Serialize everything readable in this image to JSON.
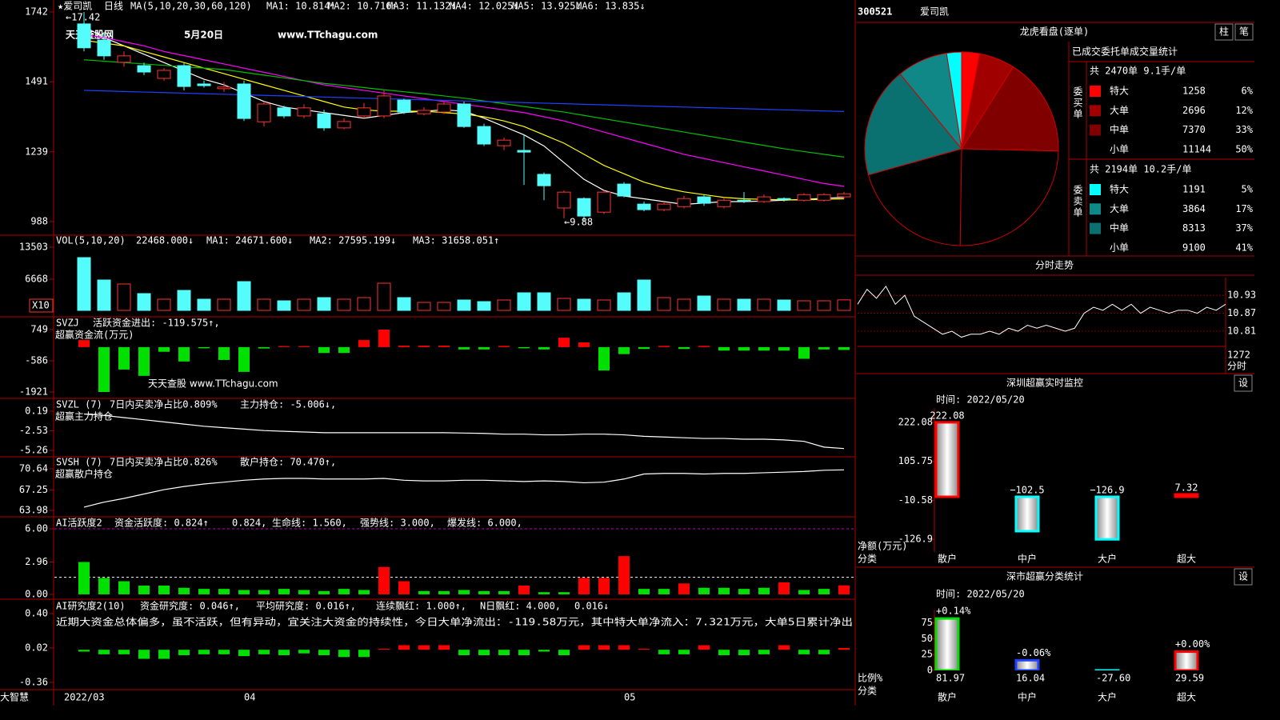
{
  "ui": {
    "stock_code": "300521",
    "stock_name": "爱司凯",
    "software": "大智慧",
    "watermark": [
      "天天查股网",
      "5月20日",
      "www.TTchagu.com"
    ],
    "watermark2": "天天查股 www.TTchagu.com",
    "commentary": "近期大资金总体偏多，虽不活跃，但有异动，宜关注大资金的持续性，今日大单净流出：-119.58万元，其中特大单净流入：7.321万元，大单5日累计净出"
  },
  "chart_data": [
    {
      "type": "candlestick",
      "header": [
        "★爱司凯",
        "日线",
        "MA(5,10,20,30,60,120)",
        "MA1: 10.814↑",
        "MA2: 10.716↑",
        "MA3: 11.132↓",
        "MA4: 12.025↓",
        "MA5: 13.925↓",
        "MA6: 13.835↓"
      ],
      "annotations": [
        "←17.42",
        "←9.88"
      ],
      "categories": [
        "2022/03",
        null,
        null,
        null,
        null,
        null,
        null,
        null,
        null,
        "04",
        null,
        null,
        null,
        null,
        null,
        null,
        null,
        null,
        null,
        null,
        null,
        null,
        null,
        null,
        null,
        null,
        null,
        null,
        "05",
        null,
        null,
        null,
        null,
        null,
        null,
        null,
        null,
        null,
        null
      ],
      "open": [
        1699,
        1641,
        1561,
        1549,
        1503,
        1549,
        1483,
        1466,
        1483,
        1347,
        1397,
        1368,
        1376,
        1325,
        1368,
        1368,
        1425,
        1376,
        1382,
        1411,
        1330,
        1261,
        1244,
        1158,
        1037,
        1071,
        1022,
        1123,
        1051,
        1031,
        1042,
        1077,
        1042,
        1065,
        1060,
        1071,
        1065,
        1065,
        1077
      ],
      "high": [
        1742,
        1670,
        1600,
        1560,
        1540,
        1560,
        1495,
        1490,
        1495,
        1420,
        1405,
        1410,
        1390,
        1360,
        1415,
        1460,
        1430,
        1400,
        1420,
        1420,
        1340,
        1290,
        1300,
        1165,
        1100,
        1075,
        1100,
        1130,
        1060,
        1060,
        1080,
        1085,
        1075,
        1094,
        1085,
        1075,
        1090,
        1090,
        1095
      ],
      "low": [
        1600,
        1570,
        1545,
        1515,
        1495,
        1460,
        1470,
        1455,
        1350,
        1330,
        1360,
        1360,
        1315,
        1320,
        1360,
        1360,
        1375,
        1370,
        1375,
        1325,
        1260,
        1245,
        1120,
        1065,
        1000,
        988,
        1015,
        1075,
        1025,
        1025,
        1035,
        1045,
        1035,
        1055,
        1055,
        1060,
        1060,
        1060,
        1070
      ],
      "close": [
        1613,
        1584,
        1584,
        1526,
        1532,
        1474,
        1477,
        1472,
        1359,
        1411,
        1368,
        1397,
        1325,
        1348,
        1397,
        1440,
        1382,
        1388,
        1411,
        1330,
        1267,
        1281,
        1238,
        1117,
        1094,
        1008,
        1094,
        1080,
        1031,
        1051,
        1071,
        1054,
        1065,
        1062,
        1077,
        1068,
        1085,
        1085,
        1088
      ],
      "up_color": "#ff3232",
      "down_color": "#54fcfc",
      "ma_lines": [
        {
          "color": "#ffffff",
          "values": [
            1690,
            1650,
            1620,
            1590,
            1560,
            1530,
            1500,
            1480,
            1450,
            1420,
            1400,
            1390,
            1380,
            1370,
            1360,
            1370,
            1380,
            1385,
            1390,
            1385,
            1360,
            1330,
            1300,
            1260,
            1200,
            1140,
            1100,
            1080,
            1070,
            1060,
            1050,
            1055,
            1060,
            1060,
            1062,
            1065,
            1068,
            1072,
            1075
          ]
        },
        {
          "color": "#ffff00",
          "values": [
            1640,
            1630,
            1620,
            1600,
            1580,
            1560,
            1540,
            1520,
            1500,
            1480,
            1460,
            1440,
            1420,
            1400,
            1390,
            1385,
            1385,
            1385,
            1380,
            1375,
            1365,
            1350,
            1330,
            1300,
            1270,
            1230,
            1190,
            1160,
            1130,
            1110,
            1095,
            1085,
            1075,
            1070,
            1068,
            1066,
            1066,
            1068,
            1070
          ]
        },
        {
          "color": "#ff00ff",
          "values": [
            1660,
            1650,
            1635,
            1620,
            1600,
            1585,
            1570,
            1555,
            1540,
            1525,
            1510,
            1495,
            1480,
            1470,
            1460,
            1450,
            1440,
            1430,
            1420,
            1410,
            1400,
            1390,
            1380,
            1365,
            1350,
            1330,
            1310,
            1290,
            1270,
            1250,
            1230,
            1215,
            1200,
            1185,
            1170,
            1155,
            1140,
            1125,
            1115
          ]
        },
        {
          "color": "#00c000",
          "values": [
            1570,
            1565,
            1560,
            1555,
            1550,
            1545,
            1540,
            1535,
            1525,
            1515,
            1505,
            1495,
            1485,
            1478,
            1470,
            1462,
            1455,
            1448,
            1440,
            1432,
            1422,
            1412,
            1402,
            1392,
            1382,
            1370,
            1358,
            1346,
            1334,
            1322,
            1310,
            1298,
            1286,
            1274,
            1262,
            1250,
            1240,
            1230,
            1220
          ]
        },
        {
          "color": "#2040ff",
          "values": [
            1460,
            1458,
            1456,
            1454,
            1452,
            1450,
            1448,
            1446,
            1444,
            1442,
            1440,
            1438,
            1436,
            1434,
            1432,
            1430,
            1428,
            1426,
            1424,
            1422,
            1420,
            1418,
            1416,
            1414,
            1412,
            1410,
            1408,
            1406,
            1404,
            1402,
            1400,
            1398,
            1396,
            1394,
            1392,
            1390,
            1388,
            1386,
            1384
          ]
        }
      ],
      "ylim": [
        942,
        1785
      ],
      "yticks": [
        1742,
        1491,
        1239,
        988
      ]
    },
    {
      "type": "volume",
      "header": [
        "VOL(5,10,20)",
        "22468.000↓",
        "MA1: 24671.600↓",
        "MA2: 27595.199↓",
        "MA3: 31658.051↑"
      ],
      "unit_label": "X10",
      "values": [
        11279,
        6494,
        5640,
        3589,
        2393,
        4273,
        2393,
        2393,
        6152,
        2393,
        2051,
        2393,
        2734,
        2393,
        2734,
        5811,
        2734,
        1709,
        1709,
        2222,
        1880,
        2222,
        3760,
        3760,
        2564,
        2393,
        2222,
        3760,
        6494,
        2734,
        2393,
        3076,
        2393,
        2393,
        2393,
        2222,
        2051,
        2051,
        2247
      ],
      "ylim": [
        0,
        15554
      ],
      "yticks": [
        13503,
        6668
      ]
    },
    {
      "type": "bar",
      "header": [
        "SVZJ",
        "活跃资金进出: -119.575↑,",
        "超赢资金流(万元)"
      ],
      "values": [
        300,
        -1921,
        -960,
        -1230,
        -200,
        -615,
        -50,
        -550,
        -1060,
        -60,
        40,
        40,
        -250,
        -250,
        300,
        749,
        60,
        60,
        60,
        -100,
        -100,
        50,
        -50,
        -100,
        400,
        200,
        -1000,
        -300,
        -80,
        50,
        -80,
        50,
        -150,
        -150,
        -150,
        -150,
        -500,
        -100,
        -120
      ],
      "up_color": "#ff0000",
      "down_color": "#00e000",
      "ylim": [
        -2160,
        1159
      ],
      "yticks": [
        749,
        -586,
        -1921
      ]
    },
    {
      "type": "line",
      "header": [
        "SVZL (7)",
        "7日内买卖净占比0.809%",
        "主力持仓: -5.006↓,",
        "超赢主力持仓"
      ],
      "color": "#ffffff",
      "values": [
        -0.2,
        -0.4,
        -0.7,
        -1.0,
        -1.3,
        -1.6,
        -1.9,
        -2.1,
        -2.3,
        -2.5,
        -2.6,
        -2.7,
        -2.8,
        -2.8,
        -2.8,
        -2.8,
        -2.8,
        -2.8,
        -2.8,
        -2.85,
        -2.9,
        -3.0,
        -3.0,
        -3.1,
        -3.1,
        -3.0,
        -3.0,
        -3.1,
        -3.3,
        -3.4,
        -3.5,
        -3.6,
        -3.6,
        -3.7,
        -3.7,
        -3.8,
        -4.0,
        -4.8,
        -5.006
      ],
      "ylim": [
        -6.04,
        1.75
      ],
      "yticks": [
        0.19,
        -2.53,
        -5.26
      ]
    },
    {
      "type": "line",
      "header": [
        "SVSH (7)",
        "7日内买卖净占比0.826%",
        "散户持仓: 70.470↑,",
        "超赢散户持仓"
      ],
      "color": "#ffffff",
      "values": [
        64.5,
        65.3,
        65.9,
        66.6,
        67.3,
        67.8,
        68.2,
        68.5,
        68.8,
        69.0,
        69.1,
        69.1,
        69.0,
        69.0,
        69.0,
        69.1,
        68.8,
        68.7,
        68.7,
        68.8,
        68.8,
        68.7,
        68.6,
        68.7,
        68.6,
        68.4,
        68.5,
        69.0,
        69.8,
        69.9,
        69.9,
        69.8,
        69.9,
        69.9,
        70.0,
        70.1,
        70.2,
        70.4,
        70.47
      ],
      "ylim": [
        63.08,
        72.3
      ],
      "yticks": [
        70.64,
        67.25,
        63.98
      ]
    },
    {
      "type": "bar",
      "header": [
        "AI活跃度2",
        "资金活跃度: 0.824↑",
        "0.824,",
        "生命线: 1.560,",
        "强势线: 3.000,",
        "爆发线: 6.000,"
      ],
      "values": [
        2.96,
        1.5,
        1.2,
        0.8,
        0.8,
        0.6,
        0.5,
        0.5,
        0.4,
        0.4,
        0.5,
        0.4,
        0.3,
        0.5,
        0.4,
        2.5,
        1.2,
        0.3,
        0.3,
        0.4,
        0.3,
        0.3,
        0.8,
        0.2,
        0.2,
        1.5,
        1.5,
        3.5,
        0.5,
        0.5,
        1.0,
        0.6,
        0.6,
        0.5,
        0.6,
        1.1,
        0.4,
        0.5,
        0.824
      ],
      "up": [
        false,
        false,
        false,
        false,
        false,
        false,
        false,
        false,
        false,
        false,
        false,
        false,
        false,
        false,
        false,
        true,
        true,
        false,
        false,
        false,
        false,
        false,
        true,
        false,
        false,
        true,
        true,
        true,
        false,
        false,
        true,
        false,
        false,
        false,
        false,
        true,
        false,
        false,
        true
      ],
      "up_color": "#ff0000",
      "down_color": "#00e000",
      "reference_lines": [
        {
          "value": 1.56,
          "color": "#ffffff"
        },
        {
          "value": 6,
          "color": "#c000c0"
        }
      ],
      "ylim": [
        -0.37,
        6.95
      ],
      "yticks": [
        {
          "value": 6,
          "label": "6.00"
        },
        {
          "value": 2.96,
          "label": "2.96"
        },
        {
          "value": 0,
          "label": "0.00"
        }
      ]
    },
    {
      "type": "bar",
      "header": [
        "AI研究度2(10)",
        "资金研究度: 0.046↑,",
        "平均研究度: 0.016↑,",
        "连续飘红: 1.000↑,",
        "N日飘红: 4.000,",
        "0.016↓"
      ],
      "values": [
        -0.02,
        -0.05,
        -0.05,
        -0.1,
        -0.1,
        -0.06,
        -0.05,
        -0.05,
        -0.07,
        -0.05,
        -0.06,
        -0.04,
        -0.06,
        -0.08,
        -0.08,
        0.01,
        0.05,
        0.05,
        0.05,
        -0.06,
        -0.06,
        -0.06,
        -0.06,
        -0.02,
        -0.06,
        0.05,
        0.05,
        0.05,
        0.01,
        -0.05,
        -0.05,
        0.05,
        -0.06,
        -0.06,
        -0.05,
        0.05,
        -0.05,
        -0.05,
        0.02
      ],
      "up_color": "#ff0000",
      "down_color": "#00e000",
      "ylim": [
        -0.44,
        0.532
      ],
      "yticks": [
        {
          "value": 0.4,
          "label": "0.40"
        },
        {
          "value": 0.02,
          "label": "0.02"
        },
        {
          "value": -0.36,
          "label": "-0.36"
        }
      ]
    },
    {
      "type": "pie",
      "title": "龙虎看盘(逐单)",
      "buttons": [
        "柱",
        "笔"
      ],
      "subtitle": "已成交委托单成交量统计",
      "buy": {
        "summary": "共 2470单 9.1手/单",
        "side": "委买单",
        "labels": [
          "特大",
          "大单",
          "中单",
          "小单"
        ],
        "volumes": [
          1258,
          2696,
          7370,
          11144
        ],
        "values": [
          6,
          12,
          33,
          50
        ],
        "value_labels": [
          "6%",
          "12%",
          "33%",
          "50%"
        ],
        "colors": [
          "#ff0000",
          "#a00000",
          "#800000",
          "#000000"
        ]
      },
      "sell": {
        "summary": "共 2194单 10.2手/单",
        "side": "委卖单",
        "labels": [
          "特大",
          "大单",
          "中单",
          "小单"
        ],
        "volumes": [
          1191,
          3864,
          8313,
          9100
        ],
        "values": [
          5,
          17,
          37,
          41
        ],
        "value_labels": [
          "5%",
          "17%",
          "37%",
          "41%"
        ],
        "colors": [
          "#00ffff",
          "#108888",
          "#0a7070",
          "#000000"
        ]
      }
    },
    {
      "type": "line",
      "title": "分时走势",
      "color": "#ffffff",
      "values": [
        10.9,
        10.95,
        10.92,
        10.96,
        10.9,
        10.93,
        10.86,
        10.84,
        10.82,
        10.8,
        10.81,
        10.79,
        10.8,
        10.8,
        10.81,
        10.8,
        10.82,
        10.81,
        10.83,
        10.82,
        10.83,
        10.82,
        10.81,
        10.82,
        10.87,
        10.89,
        10.88,
        10.9,
        10.88,
        10.9,
        10.87,
        10.89,
        10.88,
        10.87,
        10.88,
        10.88,
        10.87,
        10.89,
        10.88,
        10.9
      ],
      "ylim": [
        10.762,
        10.989
      ],
      "yticks": [
        10.93,
        10.87,
        10.81
      ],
      "vol_ticks": [
        1272
      ],
      "vol_label": "分时"
    },
    {
      "type": "bar",
      "title": "深圳超赢实时监控",
      "button": "设",
      "time": "时间: 2022/05/20",
      "ylabel": "净额(万元)",
      "xlabel": "分类",
      "categories": [
        "散户",
        "中户",
        "大户",
        "超大"
      ],
      "values": [
        222.08,
        -102.5,
        -126.9,
        7.32
      ],
      "value_labels": [
        "222.08",
        "−102.5",
        "−126.9",
        "7.32"
      ],
      "colors": [
        "#ff0000",
        "#00ffff",
        "#00ffff",
        "#ff0000"
      ],
      "ylim": [
        -164.6,
        264.8
      ],
      "yticks": [
        222.08,
        105.75,
        -10.58,
        -126.9
      ]
    },
    {
      "type": "bar",
      "title": "深市超赢分类统计",
      "button": "设",
      "time": "时间: 2022/05/20",
      "ylabel": "比例%",
      "xlabel": "分类",
      "categories": [
        "散户",
        "中户",
        "大户",
        "超大"
      ],
      "values": [
        81.97,
        16.04,
        -27.6,
        29.59
      ],
      "value_labels": [
        "81.97",
        "16.04",
        "-27.60",
        "29.59"
      ],
      "change_labels": [
        "+0.14%",
        "-0.06%",
        null,
        "+0.00%"
      ],
      "colors": [
        "#00e000",
        "#2040ff",
        "#00ffff",
        "#ff0000"
      ],
      "ylim": [
        0,
        96
      ],
      "yticks": [
        75,
        50,
        25,
        0
      ]
    }
  ]
}
